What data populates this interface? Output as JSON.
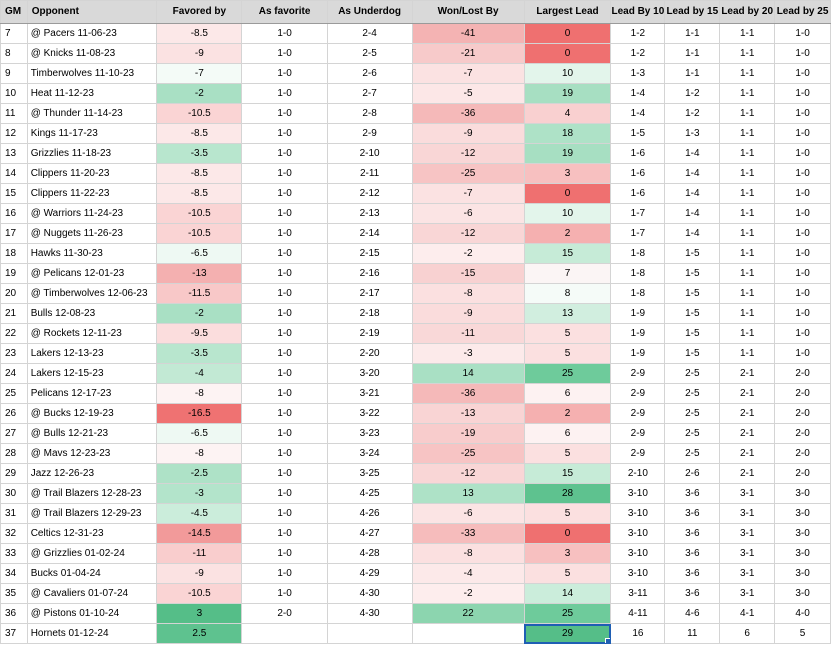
{
  "columns": [
    "GM",
    "Opponent",
    "Favored by",
    "As favorite",
    "As Underdog",
    "Won/Lost By",
    "Largest Lead",
    "Lead By 10",
    "Lead by 15",
    "Lead by 20",
    "Lead by 25"
  ],
  "rows": [
    {
      "gm": "7",
      "opp": "@ Pacers 11-06-23",
      "fav": "-8.5",
      "asfav": "1-0",
      "asdog": "2-4",
      "wl": "-41",
      "lead": "0",
      "l10": "1-2",
      "l15": "1-1",
      "l20": "1-1",
      "l25": "1-0",
      "c_fav": "#fce8e8",
      "c_wl": "#f4b3b3",
      "c_lead": "#ef7070"
    },
    {
      "gm": "8",
      "opp": "@ Knicks 11-08-23",
      "fav": "-9",
      "asfav": "1-0",
      "asdog": "2-5",
      "wl": "-21",
      "lead": "0",
      "l10": "1-2",
      "l15": "1-1",
      "l20": "1-1",
      "l25": "1-0",
      "c_fav": "#fbe2e2",
      "c_wl": "#f7caca",
      "c_lead": "#ef7070"
    },
    {
      "gm": "9",
      "opp": "Timberwolves 11-10-23",
      "fav": "-7",
      "asfav": "1-0",
      "asdog": "2-6",
      "wl": "-7",
      "lead": "10",
      "l10": "1-3",
      "l15": "1-1",
      "l20": "1-1",
      "l25": "1-0",
      "c_fav": "#f4fbf7",
      "c_wl": "#fbe2e2",
      "c_lead": "#e3f5eb"
    },
    {
      "gm": "10",
      "opp": "Heat 11-12-23",
      "fav": "-2",
      "asfav": "1-0",
      "asdog": "2-7",
      "wl": "-5",
      "lead": "19",
      "l10": "1-4",
      "l15": "1-2",
      "l20": "1-1",
      "l25": "1-0",
      "c_fav": "#a9e0c4",
      "c_wl": "#fce7e7",
      "c_lead": "#a7dfc2"
    },
    {
      "gm": "11",
      "opp": "@ Thunder 11-14-23",
      "fav": "-10.5",
      "asfav": "1-0",
      "asdog": "2-8",
      "wl": "-36",
      "lead": "4",
      "l10": "1-4",
      "l15": "1-2",
      "l20": "1-1",
      "l25": "1-0",
      "c_fav": "#fad4d4",
      "c_wl": "#f5b9b9",
      "c_lead": "#f9d0d0"
    },
    {
      "gm": "12",
      "opp": "Kings 11-17-23",
      "fav": "-8.5",
      "asfav": "1-0",
      "asdog": "2-9",
      "wl": "-9",
      "lead": "18",
      "l10": "1-5",
      "l15": "1-3",
      "l20": "1-1",
      "l25": "1-0",
      "c_fav": "#fce8e8",
      "c_wl": "#fadcdc",
      "c_lead": "#aee2c7"
    },
    {
      "gm": "13",
      "opp": "Grizzlies 11-18-23",
      "fav": "-3.5",
      "asfav": "1-0",
      "asdog": "2-10",
      "wl": "-12",
      "lead": "19",
      "l10": "1-6",
      "l15": "1-4",
      "l20": "1-1",
      "l25": "1-0",
      "c_fav": "#b8e6ce",
      "c_wl": "#f9d6d6",
      "c_lead": "#a7dfc2"
    },
    {
      "gm": "14",
      "opp": "Clippers 11-20-23",
      "fav": "-8.5",
      "asfav": "1-0",
      "asdog": "2-11",
      "wl": "-25",
      "lead": "3",
      "l10": "1-6",
      "l15": "1-4",
      "l20": "1-1",
      "l25": "1-0",
      "c_fav": "#fce8e8",
      "c_wl": "#f7c4c4",
      "c_lead": "#f7c0c0"
    },
    {
      "gm": "15",
      "opp": "Clippers 11-22-23",
      "fav": "-8.5",
      "asfav": "1-0",
      "asdog": "2-12",
      "wl": "-7",
      "lead": "0",
      "l10": "1-6",
      "l15": "1-4",
      "l20": "1-1",
      "l25": "1-0",
      "c_fav": "#fce8e8",
      "c_wl": "#fbe2e2",
      "c_lead": "#ef7070"
    },
    {
      "gm": "16",
      "opp": "@ Warriors 11-24-23",
      "fav": "-10.5",
      "asfav": "1-0",
      "asdog": "2-13",
      "wl": "-6",
      "lead": "10",
      "l10": "1-7",
      "l15": "1-4",
      "l20": "1-1",
      "l25": "1-0",
      "c_fav": "#fad4d4",
      "c_wl": "#fbe4e4",
      "c_lead": "#e3f5eb"
    },
    {
      "gm": "17",
      "opp": "@ Nuggets 11-26-23",
      "fav": "-10.5",
      "asfav": "1-0",
      "asdog": "2-14",
      "wl": "-12",
      "lead": "2",
      "l10": "1-7",
      "l15": "1-4",
      "l20": "1-1",
      "l25": "1-0",
      "c_fav": "#fad4d4",
      "c_wl": "#f9d6d6",
      "c_lead": "#f5b0b0"
    },
    {
      "gm": "18",
      "opp": "Hawks 11-30-23",
      "fav": "-6.5",
      "asfav": "1-0",
      "asdog": "2-15",
      "wl": "-2",
      "lead": "15",
      "l10": "1-8",
      "l15": "1-5",
      "l20": "1-1",
      "l25": "1-0",
      "c_fav": "#eef9f3",
      "c_wl": "#fdeded",
      "c_lead": "#c6ebd7"
    },
    {
      "gm": "19",
      "opp": "@ Pelicans 12-01-23",
      "fav": "-13",
      "asfav": "1-0",
      "asdog": "2-16",
      "wl": "-15",
      "lead": "7",
      "l10": "1-8",
      "l15": "1-5",
      "l20": "1-1",
      "l25": "1-0",
      "c_fav": "#f4b0b0",
      "c_wl": "#f8d1d1",
      "c_lead": "#fbf5f5"
    },
    {
      "gm": "20",
      "opp": "@ Timberwolves 12-06-23",
      "fav": "-11.5",
      "asfav": "1-0",
      "asdog": "2-17",
      "wl": "-8",
      "lead": "8",
      "l10": "1-8",
      "l15": "1-5",
      "l20": "1-1",
      "l25": "1-0",
      "c_fav": "#f8c8c8",
      "c_wl": "#fbe0e0",
      "c_lead": "#f5fbf8"
    },
    {
      "gm": "21",
      "opp": "Bulls 12-08-23",
      "fav": "-2",
      "asfav": "1-0",
      "asdog": "2-18",
      "wl": "-9",
      "lead": "13",
      "l10": "1-9",
      "l15": "1-5",
      "l20": "1-1",
      "l25": "1-0",
      "c_fav": "#a9e0c4",
      "c_wl": "#fadcdc",
      "c_lead": "#d1eedf"
    },
    {
      "gm": "22",
      "opp": "@ Rockets 12-11-23",
      "fav": "-9.5",
      "asfav": "1-0",
      "asdog": "2-19",
      "wl": "-11",
      "lead": "5",
      "l10": "1-9",
      "l15": "1-5",
      "l20": "1-1",
      "l25": "1-0",
      "c_fav": "#fbdddd",
      "c_wl": "#f9d8d8",
      "c_lead": "#fbe0e0"
    },
    {
      "gm": "23",
      "opp": "Lakers 12-13-23",
      "fav": "-3.5",
      "asfav": "1-0",
      "asdog": "2-20",
      "wl": "-3",
      "lead": "5",
      "l10": "1-9",
      "l15": "1-5",
      "l20": "1-1",
      "l25": "1-0",
      "c_fav": "#b8e6ce",
      "c_wl": "#fceaea",
      "c_lead": "#fbe0e0"
    },
    {
      "gm": "24",
      "opp": "Lakers 12-15-23",
      "fav": "-4",
      "asfav": "1-0",
      "asdog": "3-20",
      "wl": "14",
      "lead": "25",
      "l10": "2-9",
      "l15": "2-5",
      "l20": "2-1",
      "l25": "2-0",
      "c_fav": "#c2e9d4",
      "c_wl": "#a9e0c4",
      "c_lead": "#6ecb9b"
    },
    {
      "gm": "25",
      "opp": "Pelicans 12-17-23",
      "fav": "-8",
      "asfav": "1-0",
      "asdog": "3-21",
      "wl": "-36",
      "lead": "6",
      "l10": "2-9",
      "l15": "2-5",
      "l20": "2-1",
      "l25": "2-0",
      "c_fav": "#fdf3f3",
      "c_wl": "#f5b9b9",
      "c_lead": "#fdf2f2"
    },
    {
      "gm": "26",
      "opp": "@ Bucks 12-19-23",
      "fav": "-16.5",
      "asfav": "1-0",
      "asdog": "3-22",
      "wl": "-13",
      "lead": "2",
      "l10": "2-9",
      "l15": "2-5",
      "l20": "2-1",
      "l25": "2-0",
      "c_fav": "#ef7272",
      "c_wl": "#f9d4d4",
      "c_lead": "#f5b0b0"
    },
    {
      "gm": "27",
      "opp": "@ Bulls 12-21-23",
      "fav": "-6.5",
      "asfav": "1-0",
      "asdog": "3-23",
      "wl": "-19",
      "lead": "6",
      "l10": "2-9",
      "l15": "2-5",
      "l20": "2-1",
      "l25": "2-0",
      "c_fav": "#eef9f3",
      "c_wl": "#f8cccc",
      "c_lead": "#fdf2f2"
    },
    {
      "gm": "28",
      "opp": "@ Mavs 12-23-23",
      "fav": "-8",
      "asfav": "1-0",
      "asdog": "3-24",
      "wl": "-25",
      "lead": "5",
      "l10": "2-9",
      "l15": "2-5",
      "l20": "2-1",
      "l25": "2-0",
      "c_fav": "#fdf3f3",
      "c_wl": "#f7c4c4",
      "c_lead": "#fbe0e0"
    },
    {
      "gm": "29",
      "opp": "Jazz 12-26-23",
      "fav": "-2.5",
      "asfav": "1-0",
      "asdog": "3-25",
      "wl": "-12",
      "lead": "15",
      "l10": "2-10",
      "l15": "2-6",
      "l20": "2-1",
      "l25": "2-0",
      "c_fav": "#aee2c7",
      "c_wl": "#f9d6d6",
      "c_lead": "#c6ebd7"
    },
    {
      "gm": "30",
      "opp": "@ Trail Blazers 12-28-23",
      "fav": "-3",
      "asfav": "1-0",
      "asdog": "4-25",
      "wl": "13",
      "lead": "28",
      "l10": "3-10",
      "l15": "3-6",
      "l20": "3-1",
      "l25": "3-0",
      "c_fav": "#b3e4cb",
      "c_wl": "#aee2c7",
      "c_lead": "#5ec28f"
    },
    {
      "gm": "31",
      "opp": "@ Trail Blazers 12-29-23",
      "fav": "-4.5",
      "asfav": "1-0",
      "asdog": "4-26",
      "wl": "-6",
      "lead": "5",
      "l10": "3-10",
      "l15": "3-6",
      "l20": "3-1",
      "l25": "3-0",
      "c_fav": "#cbeddb",
      "c_wl": "#fbe4e4",
      "c_lead": "#fbe0e0"
    },
    {
      "gm": "32",
      "opp": "Celtics 12-31-23",
      "fav": "-14.5",
      "asfav": "1-0",
      "asdog": "4-27",
      "wl": "-33",
      "lead": "0",
      "l10": "3-10",
      "l15": "3-6",
      "l20": "3-1",
      "l25": "3-0",
      "c_fav": "#f29a9a",
      "c_wl": "#f6bcbc",
      "c_lead": "#ef7070"
    },
    {
      "gm": "33",
      "opp": "@ Grizzlies 01-02-24",
      "fav": "-11",
      "asfav": "1-0",
      "asdog": "4-28",
      "wl": "-8",
      "lead": "3",
      "l10": "3-10",
      "l15": "3-6",
      "l20": "3-1",
      "l25": "3-0",
      "c_fav": "#f9cdcd",
      "c_wl": "#fbe0e0",
      "c_lead": "#f7c0c0"
    },
    {
      "gm": "34",
      "opp": "Bucks 01-04-24",
      "fav": "-9",
      "asfav": "1-0",
      "asdog": "4-29",
      "wl": "-4",
      "lead": "5",
      "l10": "3-10",
      "l15": "3-6",
      "l20": "3-1",
      "l25": "3-0",
      "c_fav": "#fbe2e2",
      "c_wl": "#fce9e9",
      "c_lead": "#fbe0e0"
    },
    {
      "gm": "35",
      "opp": "@ Cavaliers 01-07-24",
      "fav": "-10.5",
      "asfav": "1-0",
      "asdog": "4-30",
      "wl": "-2",
      "lead": "14",
      "l10": "3-11",
      "l15": "3-6",
      "l20": "3-1",
      "l25": "3-0",
      "c_fav": "#fad4d4",
      "c_wl": "#fdeded",
      "c_lead": "#cbeddb"
    },
    {
      "gm": "36",
      "opp": "@ Pistons 01-10-24",
      "fav": "3",
      "asfav": "2-0",
      "asdog": "4-30",
      "wl": "22",
      "lead": "25",
      "l10": "4-11",
      "l15": "4-6",
      "l20": "4-1",
      "l25": "4-0",
      "c_fav": "#55be88",
      "c_wl": "#8cd5af",
      "c_lead": "#6ecb9b"
    },
    {
      "gm": "37",
      "opp": "Hornets 01-12-24",
      "fav": "2.5",
      "asfav": "",
      "asdog": "",
      "wl": "",
      "lead": "29",
      "l10": "16",
      "l15": "11",
      "l20": "6",
      "l25": "5",
      "c_fav": "#5ec28f",
      "c_wl": "#ffffff",
      "c_lead": "#55be88"
    }
  ]
}
